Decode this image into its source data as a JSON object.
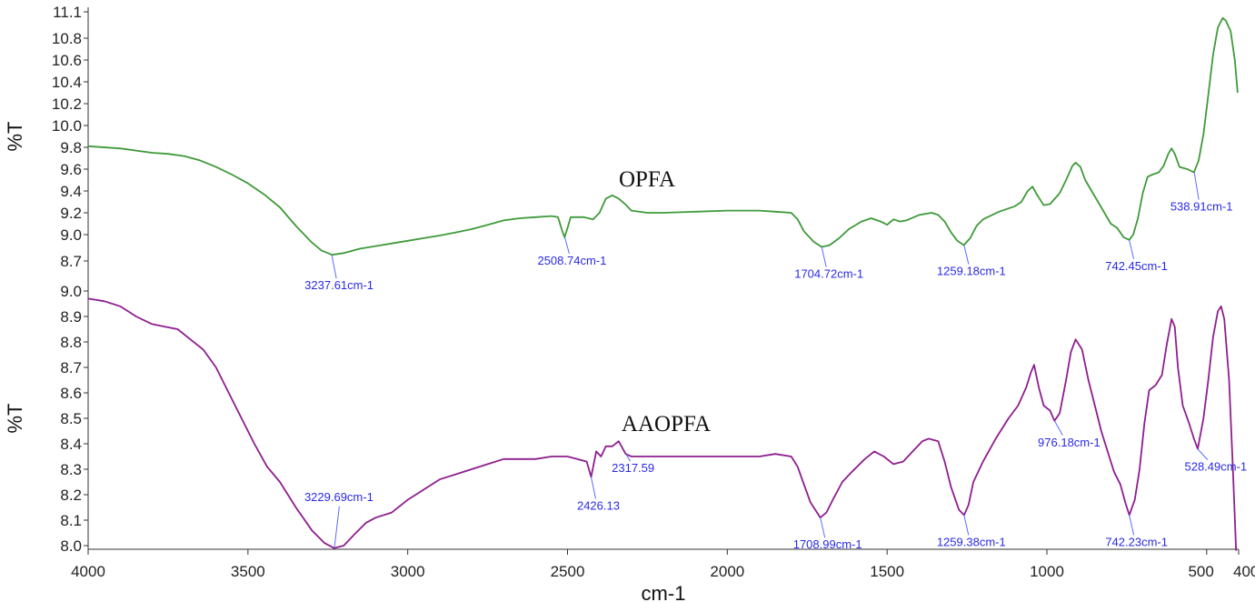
{
  "chart_data": {
    "type": "line",
    "xlabel": "cm-1",
    "xlim": [
      4000,
      400
    ],
    "x_ticks": [
      4000,
      3500,
      3000,
      2500,
      2000,
      1500,
      1000,
      500,
      400
    ],
    "x_tick_labels": [
      "4000",
      "3500",
      "3000",
      "2500",
      "2000",
      "1500",
      "1000",
      "500",
      "400"
    ],
    "colors": {
      "OPFA": "#3f9a3a",
      "AAOPFA": "#8e1e8e",
      "peak_label": "#2a2ae6"
    },
    "panels": [
      {
        "name": "OPFA",
        "ylabel": "%T",
        "ylim": [
          8.7,
          11.1
        ],
        "y_ticks": [
          8.7,
          9.0,
          9.2,
          9.4,
          9.6,
          9.8,
          10.0,
          10.2,
          10.4,
          10.6,
          10.8,
          11.1
        ],
        "y_tick_labels": [
          "8.7",
          "9.0",
          "9.2",
          "9.4",
          "9.6",
          "9.8",
          "10.0",
          "10.2",
          "10.4",
          "10.6",
          "10.8",
          "11.1"
        ],
        "points": [
          [
            4000,
            9.81
          ],
          [
            3900,
            9.79
          ],
          [
            3800,
            9.75
          ],
          [
            3750,
            9.74
          ],
          [
            3700,
            9.72
          ],
          [
            3650,
            9.68
          ],
          [
            3600,
            9.62
          ],
          [
            3550,
            9.55
          ],
          [
            3500,
            9.47
          ],
          [
            3450,
            9.37
          ],
          [
            3400,
            9.25
          ],
          [
            3350,
            9.08
          ],
          [
            3300,
            8.91
          ],
          [
            3270,
            8.82
          ],
          [
            3237,
            8.77
          ],
          [
            3200,
            8.79
          ],
          [
            3150,
            8.84
          ],
          [
            3100,
            8.87
          ],
          [
            3050,
            8.9
          ],
          [
            3000,
            8.93
          ],
          [
            2950,
            8.96
          ],
          [
            2900,
            8.99
          ],
          [
            2850,
            9.02
          ],
          [
            2800,
            9.05
          ],
          [
            2750,
            9.09
          ],
          [
            2700,
            9.13
          ],
          [
            2650,
            9.15
          ],
          [
            2600,
            9.16
          ],
          [
            2550,
            9.17
          ],
          [
            2530,
            9.16
          ],
          [
            2515,
            9.02
          ],
          [
            2509,
            8.97
          ],
          [
            2500,
            9.06
          ],
          [
            2490,
            9.16
          ],
          [
            2450,
            9.16
          ],
          [
            2420,
            9.14
          ],
          [
            2400,
            9.2
          ],
          [
            2380,
            9.33
          ],
          [
            2360,
            9.36
          ],
          [
            2340,
            9.33
          ],
          [
            2320,
            9.28
          ],
          [
            2300,
            9.22
          ],
          [
            2250,
            9.2
          ],
          [
            2200,
            9.2
          ],
          [
            2100,
            9.21
          ],
          [
            2000,
            9.22
          ],
          [
            1900,
            9.22
          ],
          [
            1850,
            9.21
          ],
          [
            1800,
            9.2
          ],
          [
            1780,
            9.14
          ],
          [
            1760,
            9.03
          ],
          [
            1730,
            8.92
          ],
          [
            1705,
            8.86
          ],
          [
            1680,
            8.88
          ],
          [
            1650,
            8.96
          ],
          [
            1620,
            9.05
          ],
          [
            1580,
            9.12
          ],
          [
            1550,
            9.15
          ],
          [
            1520,
            9.12
          ],
          [
            1500,
            9.09
          ],
          [
            1480,
            9.14
          ],
          [
            1460,
            9.12
          ],
          [
            1440,
            9.13
          ],
          [
            1400,
            9.18
          ],
          [
            1360,
            9.2
          ],
          [
            1340,
            9.18
          ],
          [
            1320,
            9.12
          ],
          [
            1300,
            9.02
          ],
          [
            1280,
            8.93
          ],
          [
            1260,
            8.88
          ],
          [
            1240,
            8.96
          ],
          [
            1220,
            9.08
          ],
          [
            1200,
            9.14
          ],
          [
            1150,
            9.21
          ],
          [
            1100,
            9.26
          ],
          [
            1080,
            9.3
          ],
          [
            1060,
            9.4
          ],
          [
            1045,
            9.44
          ],
          [
            1030,
            9.36
          ],
          [
            1010,
            9.27
          ],
          [
            990,
            9.28
          ],
          [
            960,
            9.38
          ],
          [
            940,
            9.5
          ],
          [
            920,
            9.63
          ],
          [
            910,
            9.66
          ],
          [
            895,
            9.62
          ],
          [
            880,
            9.5
          ],
          [
            860,
            9.4
          ],
          [
            840,
            9.3
          ],
          [
            820,
            9.2
          ],
          [
            800,
            9.1
          ],
          [
            780,
            9.06
          ],
          [
            760,
            8.97
          ],
          [
            742,
            8.94
          ],
          [
            730,
            9.0
          ],
          [
            715,
            9.15
          ],
          [
            700,
            9.38
          ],
          [
            685,
            9.53
          ],
          [
            670,
            9.55
          ],
          [
            650,
            9.57
          ],
          [
            635,
            9.63
          ],
          [
            620,
            9.74
          ],
          [
            610,
            9.79
          ],
          [
            600,
            9.74
          ],
          [
            585,
            9.62
          ],
          [
            560,
            9.6
          ],
          [
            540,
            9.57
          ],
          [
            525,
            9.68
          ],
          [
            510,
            9.92
          ],
          [
            495,
            10.28
          ],
          [
            480,
            10.65
          ],
          [
            465,
            10.92
          ],
          [
            450,
            11.03
          ],
          [
            440,
            11.0
          ],
          [
            425,
            10.88
          ],
          [
            412,
            10.6
          ],
          [
            403,
            10.3
          ]
        ],
        "peaks": [
          {
            "x": 3237.61,
            "y": 8.77,
            "label": "3237.61cm-1"
          },
          {
            "x": 2508.74,
            "y": 8.97,
            "label": "2508.74cm-1"
          },
          {
            "x": 1704.72,
            "y": 8.86,
            "label": "1704.72cm-1"
          },
          {
            "x": 1259.18,
            "y": 8.88,
            "label": "1259.18cm-1"
          },
          {
            "x": 742.45,
            "y": 8.94,
            "label": "742.45cm-1"
          },
          {
            "x": 538.91,
            "y": 9.57,
            "label": "538.91cm-1"
          }
        ]
      },
      {
        "name": "AAOPFA",
        "ylabel": "%T",
        "ylim": [
          8.0,
          9.0
        ],
        "y_ticks": [
          8.0,
          8.1,
          8.2,
          8.3,
          8.4,
          8.5,
          8.6,
          8.7,
          8.8,
          8.9,
          9.0
        ],
        "y_tick_labels": [
          "8.0",
          "8.1",
          "8.2",
          "8.3",
          "8.4",
          "8.5",
          "8.6",
          "8.7",
          "8.8",
          "8.9",
          "9.0"
        ],
        "points": [
          [
            4000,
            8.97
          ],
          [
            3950,
            8.96
          ],
          [
            3900,
            8.94
          ],
          [
            3850,
            8.9
          ],
          [
            3800,
            8.87
          ],
          [
            3760,
            8.86
          ],
          [
            3720,
            8.85
          ],
          [
            3680,
            8.81
          ],
          [
            3640,
            8.77
          ],
          [
            3600,
            8.7
          ],
          [
            3560,
            8.6
          ],
          [
            3520,
            8.5
          ],
          [
            3480,
            8.4
          ],
          [
            3440,
            8.31
          ],
          [
            3400,
            8.25
          ],
          [
            3350,
            8.15
          ],
          [
            3300,
            8.06
          ],
          [
            3260,
            8.01
          ],
          [
            3230,
            7.99
          ],
          [
            3200,
            8.0
          ],
          [
            3170,
            8.04
          ],
          [
            3130,
            8.09
          ],
          [
            3100,
            8.11
          ],
          [
            3050,
            8.13
          ],
          [
            3000,
            8.18
          ],
          [
            2950,
            8.22
          ],
          [
            2900,
            8.26
          ],
          [
            2850,
            8.28
          ],
          [
            2800,
            8.3
          ],
          [
            2750,
            8.32
          ],
          [
            2700,
            8.34
          ],
          [
            2650,
            8.34
          ],
          [
            2600,
            8.34
          ],
          [
            2550,
            8.35
          ],
          [
            2500,
            8.35
          ],
          [
            2470,
            8.34
          ],
          [
            2440,
            8.33
          ],
          [
            2426,
            8.27
          ],
          [
            2410,
            8.37
          ],
          [
            2395,
            8.35
          ],
          [
            2380,
            8.39
          ],
          [
            2360,
            8.39
          ],
          [
            2340,
            8.41
          ],
          [
            2318,
            8.36
          ],
          [
            2300,
            8.35
          ],
          [
            2250,
            8.35
          ],
          [
            2200,
            8.35
          ],
          [
            2100,
            8.35
          ],
          [
            2000,
            8.35
          ],
          [
            1900,
            8.35
          ],
          [
            1850,
            8.36
          ],
          [
            1800,
            8.35
          ],
          [
            1780,
            8.31
          ],
          [
            1760,
            8.24
          ],
          [
            1740,
            8.17
          ],
          [
            1709,
            8.11
          ],
          [
            1690,
            8.13
          ],
          [
            1670,
            8.18
          ],
          [
            1640,
            8.25
          ],
          [
            1610,
            8.29
          ],
          [
            1570,
            8.34
          ],
          [
            1540,
            8.37
          ],
          [
            1510,
            8.35
          ],
          [
            1480,
            8.32
          ],
          [
            1450,
            8.33
          ],
          [
            1420,
            8.37
          ],
          [
            1390,
            8.41
          ],
          [
            1370,
            8.42
          ],
          [
            1340,
            8.41
          ],
          [
            1320,
            8.33
          ],
          [
            1300,
            8.23
          ],
          [
            1275,
            8.14
          ],
          [
            1259,
            8.12
          ],
          [
            1245,
            8.16
          ],
          [
            1230,
            8.25
          ],
          [
            1200,
            8.33
          ],
          [
            1160,
            8.42
          ],
          [
            1120,
            8.5
          ],
          [
            1090,
            8.55
          ],
          [
            1065,
            8.62
          ],
          [
            1050,
            8.68
          ],
          [
            1040,
            8.71
          ],
          [
            1025,
            8.62
          ],
          [
            1010,
            8.55
          ],
          [
            990,
            8.53
          ],
          [
            976,
            8.49
          ],
          [
            960,
            8.52
          ],
          [
            940,
            8.65
          ],
          [
            925,
            8.76
          ],
          [
            910,
            8.81
          ],
          [
            890,
            8.77
          ],
          [
            870,
            8.65
          ],
          [
            850,
            8.55
          ],
          [
            830,
            8.45
          ],
          [
            810,
            8.37
          ],
          [
            790,
            8.29
          ],
          [
            770,
            8.24
          ],
          [
            755,
            8.17
          ],
          [
            742,
            8.12
          ],
          [
            725,
            8.18
          ],
          [
            710,
            8.3
          ],
          [
            695,
            8.48
          ],
          [
            680,
            8.61
          ],
          [
            660,
            8.63
          ],
          [
            640,
            8.67
          ],
          [
            625,
            8.79
          ],
          [
            610,
            8.89
          ],
          [
            600,
            8.86
          ],
          [
            590,
            8.7
          ],
          [
            575,
            8.55
          ],
          [
            555,
            8.48
          ],
          [
            540,
            8.42
          ],
          [
            528,
            8.38
          ],
          [
            510,
            8.5
          ],
          [
            495,
            8.65
          ],
          [
            480,
            8.82
          ],
          [
            465,
            8.92
          ],
          [
            455,
            8.94
          ],
          [
            445,
            8.89
          ],
          [
            430,
            8.65
          ],
          [
            418,
            8.3
          ],
          [
            408,
            7.98
          ]
        ],
        "peaks": [
          {
            "x": 3229.69,
            "y": 7.99,
            "label": "3229.69cm-1"
          },
          {
            "x": 2426.13,
            "y": 8.27,
            "label": "2426.13"
          },
          {
            "x": 2317.59,
            "y": 8.36,
            "label": "2317.59"
          },
          {
            "x": 1708.99,
            "y": 8.11,
            "label": "1708.99cm-1"
          },
          {
            "x": 1259.38,
            "y": 8.12,
            "label": "1259.38cm-1"
          },
          {
            "x": 976.18,
            "y": 8.49,
            "label": "976.18cm-1"
          },
          {
            "x": 742.23,
            "y": 8.12,
            "label": "742.23cm-1"
          },
          {
            "x": 528.49,
            "y": 8.38,
            "label": "528.49cm-1"
          }
        ]
      }
    ]
  }
}
